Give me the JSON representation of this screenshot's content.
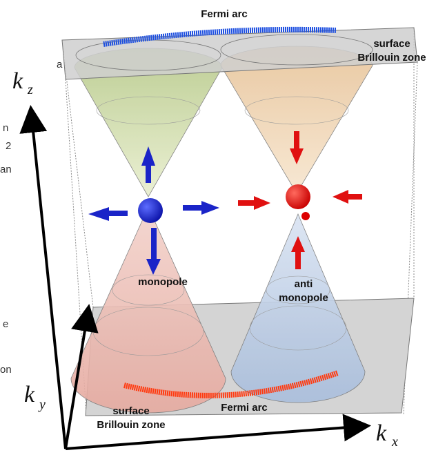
{
  "title_top": "Fermi arc",
  "top_zone_label": [
    "surface",
    "Brillouin zone"
  ],
  "bottom_zone_label": [
    "surface",
    "Brillouin zone"
  ],
  "title_bottom": "Fermi arc",
  "monopole": "monopole",
  "anti_monopole": [
    "anti",
    "monopole"
  ],
  "axes": {
    "kz": "k",
    "kz_sub": "z",
    "ky": "k",
    "ky_sub": "y",
    "kx": "k",
    "kx_sub": "x"
  },
  "edge_fragments": [
    "a",
    "n",
    "2",
    "an",
    "e",
    "on"
  ]
}
